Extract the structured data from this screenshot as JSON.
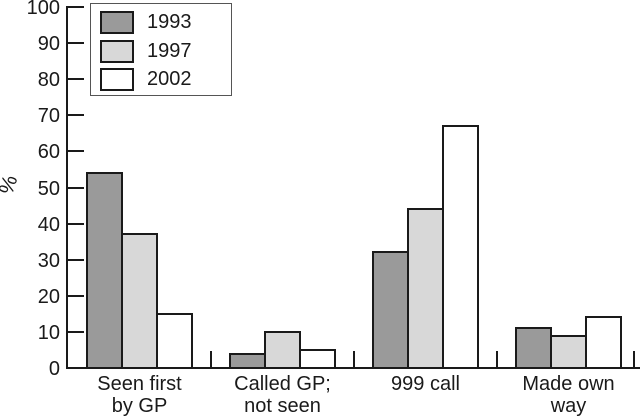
{
  "chart_data": {
    "type": "bar",
    "title": "",
    "xlabel": "",
    "ylabel": "%",
    "categories": [
      "Seen first by GP",
      "Called GP; not seen",
      "999 call",
      "Made own way"
    ],
    "category_label_lines": [
      [
        "Seen first",
        "by GP"
      ],
      [
        "Called GP;",
        "not seen"
      ],
      [
        "999 call"
      ],
      [
        "Made own",
        "way"
      ]
    ],
    "series": [
      {
        "name": "1993",
        "color": "#9a9a9a",
        "values": [
          54,
          4,
          32,
          11
        ]
      },
      {
        "name": "1997",
        "color": "#d8d8d8",
        "values": [
          37,
          10,
          44,
          9
        ]
      },
      {
        "name": "2002",
        "color": "#ffffff",
        "values": [
          15,
          5,
          67,
          14
        ]
      }
    ],
    "ylim": [
      0,
      100
    ],
    "yticks": [
      0,
      10,
      20,
      30,
      40,
      50,
      60,
      70,
      80,
      90,
      100
    ],
    "grid": false,
    "legend_position": "top-left",
    "legend_entries": [
      "1993",
      "1997",
      "2002"
    ],
    "bar_outline_color": "#1a1a1a",
    "axis_color": "#1a1a1a",
    "background_color": "#ffffff"
  }
}
